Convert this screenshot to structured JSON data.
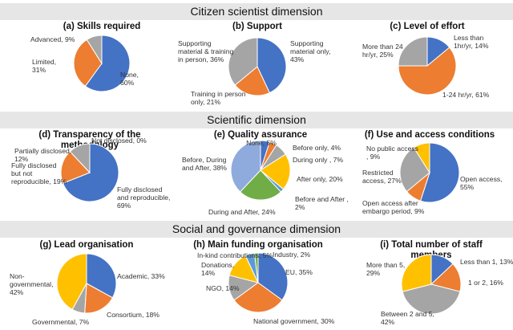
{
  "sections": [
    {
      "title": "Citizen scientist dimension"
    },
    {
      "title": "Scientific dimension"
    },
    {
      "title": "Social and governance dimension"
    }
  ],
  "chart_data": [
    {
      "type": "pie",
      "title": "(a) Skills required",
      "categories": [
        "None",
        "Limited",
        "Advanced"
      ],
      "values": [
        60,
        31,
        9
      ],
      "colors": [
        "#4472c4",
        "#ed7d31",
        "#a5a5a5"
      ],
      "labels": [
        [
          "None,",
          "60%"
        ],
        [
          "Limited,",
          "31%"
        ],
        [
          "Advanced, 9%"
        ]
      ]
    },
    {
      "type": "pie",
      "title": "(b) Support",
      "categories": [
        "Supporting material only",
        "Training in person only",
        "Supporting material & training in person"
      ],
      "values": [
        43,
        21,
        36
      ],
      "colors": [
        "#4472c4",
        "#ed7d31",
        "#a5a5a5"
      ],
      "labels": [
        [
          "Supporting",
          "material only,",
          "43%"
        ],
        [
          "Training in person",
          "only, 21%"
        ],
        [
          "Supporting",
          "material & training",
          "in person, 36%"
        ]
      ]
    },
    {
      "type": "pie",
      "title": "(c) Level of effort",
      "categories": [
        "Less than 1hr/yr",
        "1-24 hr/yr",
        "More than 24 hr/yr"
      ],
      "values": [
        14,
        61,
        25
      ],
      "colors": [
        "#4472c4",
        "#ed7d31",
        "#a5a5a5"
      ],
      "labels": [
        [
          "Less than",
          "1hr/yr, 14%"
        ],
        [
          "1-24 hr/yr, 61%"
        ],
        [
          "More than 24",
          "hr/yr, 25%"
        ]
      ]
    },
    {
      "type": "pie",
      "title": "(d) Transparency of the methodology",
      "title_lines": [
        "(d) Transparency of the",
        "methodology"
      ],
      "categories": [
        "Fully disclosed and reproducible",
        "Fully disclosed but not reproducible",
        "Partially disclosed",
        "Not disclosed"
      ],
      "values": [
        69,
        19,
        12,
        0
      ],
      "colors": [
        "#4472c4",
        "#ed7d31",
        "#a5a5a5",
        "#ffc000"
      ],
      "labels": [
        [
          "Fully disclosed",
          "and reproducible,",
          "69%"
        ],
        [
          "Fully disclosed",
          "but not",
          "reproducible, 19%"
        ],
        [
          "Partially disclosed,",
          "12%"
        ],
        [
          "Not disclosed, 0%"
        ]
      ]
    },
    {
      "type": "pie",
      "title": "(e) Quality assurance",
      "categories": [
        "None",
        "Before only",
        "During only",
        "After only",
        "Before and After",
        "During and After",
        "Before, During and After"
      ],
      "values": [
        5,
        4,
        7,
        20,
        2,
        24,
        38
      ],
      "colors": [
        "#4472c4",
        "#ed7d31",
        "#a5a5a5",
        "#ffc000",
        "#5b9bd5",
        "#70ad47",
        "#8faadc"
      ],
      "labels": [
        [
          "None, 5%"
        ],
        [
          "Before only, 4%"
        ],
        [
          "During only , 7%"
        ],
        [
          "After only, 20%"
        ],
        [
          "Before and After ,",
          "2%"
        ],
        [
          "During and After, 24%"
        ],
        [
          "Before, During",
          "and After, 38%"
        ]
      ]
    },
    {
      "type": "pie",
      "title": "(f) Use and access conditions",
      "categories": [
        "Open access",
        "Open access after embargo period",
        "Restricted access",
        "No public access"
      ],
      "values": [
        55,
        9,
        27,
        9
      ],
      "colors": [
        "#4472c4",
        "#ed7d31",
        "#a5a5a5",
        "#ffc000"
      ],
      "labels": [
        [
          "Open access,",
          "55%"
        ],
        [
          "Open access after",
          "embargo period, 9%"
        ],
        [
          "Restricted",
          "access, 27%"
        ],
        [
          "No public access",
          ", 9%"
        ]
      ]
    },
    {
      "type": "pie",
      "title": "(g) Lead organisation",
      "categories": [
        "Academic",
        "Consortium",
        "Governmental",
        "Non-governmental"
      ],
      "values": [
        33,
        18,
        7,
        42
      ],
      "colors": [
        "#4472c4",
        "#ed7d31",
        "#a5a5a5",
        "#ffc000"
      ],
      "labels": [
        [
          "Academic, 33%"
        ],
        [
          "Consortium, 18%"
        ],
        [
          "Governmental, 7%"
        ],
        [
          "Non-",
          "governmental,",
          "42%"
        ]
      ]
    },
    {
      "type": "pie",
      "title": "(h) Main funding organisation",
      "categories": [
        "EU",
        "National government",
        "NGO",
        "Donations",
        "In-kind contributions",
        "Industry"
      ],
      "values": [
        35,
        30,
        14,
        14,
        5,
        2
      ],
      "colors": [
        "#4472c4",
        "#ed7d31",
        "#a5a5a5",
        "#ffc000",
        "#5b9bd5",
        "#70ad47"
      ],
      "labels": [
        [
          "EU, 35%"
        ],
        [
          "National government, 30%"
        ],
        [
          "NGO, 14%"
        ],
        [
          "Donations,",
          "14%"
        ],
        [
          "In-kind contributions, 5%"
        ],
        [
          "Industry, 2%"
        ]
      ]
    },
    {
      "type": "pie",
      "title": "(i) Total number of staff members",
      "title_lines": [
        "(i) Total number of staff",
        "members"
      ],
      "categories": [
        "Less than 1",
        "1 or 2",
        "Between 2 and 5",
        "More than 5"
      ],
      "values": [
        13,
        16,
        42,
        29
      ],
      "colors": [
        "#4472c4",
        "#ed7d31",
        "#a5a5a5",
        "#ffc000"
      ],
      "labels": [
        [
          "Less than 1, 13%"
        ],
        [
          "1 or 2, 16%"
        ],
        [
          "Between 2 and 5,",
          "42%"
        ],
        [
          "More than 5,",
          "29%"
        ]
      ]
    }
  ]
}
